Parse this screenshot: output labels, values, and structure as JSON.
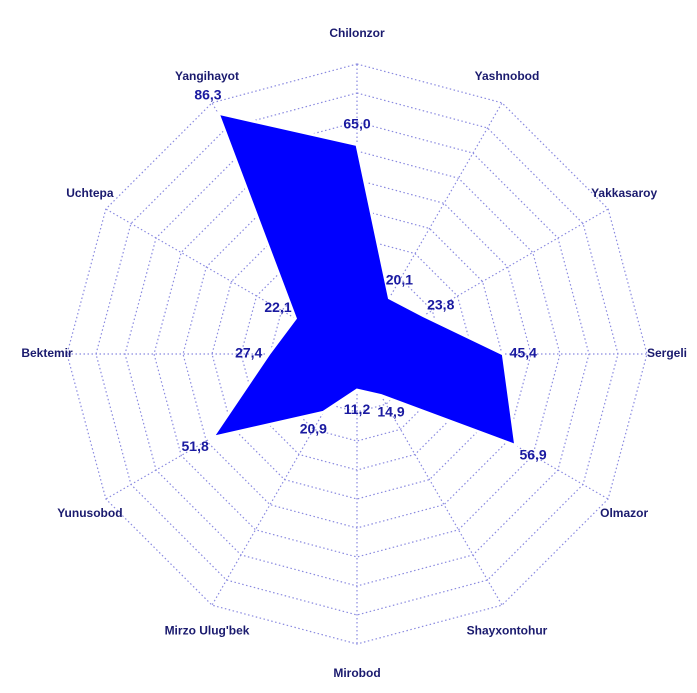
{
  "chart_data": {
    "type": "radar",
    "categories": [
      "Chilonzor",
      "Yashnobod",
      "Yakkasaroy",
      "Sergeli",
      "Olmazor",
      "Shayxontohur",
      "Mirobod",
      "Mirzo Ulug'bek",
      "Yunusobod",
      "Bektemir",
      "Uchtepa",
      "Yangihayot"
    ],
    "values": [
      65.0,
      20.1,
      23.8,
      45.4,
      56.9,
      14.9,
      11.2,
      20.9,
      51.8,
      27.4,
      22.1,
      86.3
    ],
    "value_labels": [
      "65,0",
      "20,1",
      "23,8",
      "45,4",
      "56,9",
      "14,9",
      "11,2",
      "20,9",
      "51,8",
      "27,4",
      "22,1",
      "86,3"
    ],
    "color": "#0000ff",
    "ylim": [
      0,
      90
    ]
  }
}
